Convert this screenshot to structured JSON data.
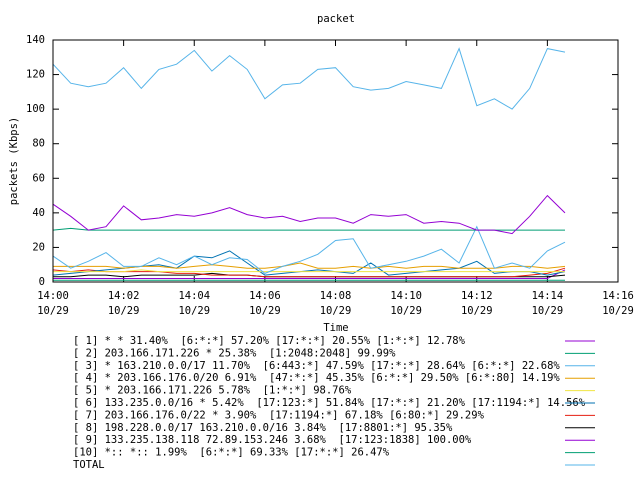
{
  "chart_data": {
    "type": "line",
    "title": "packet",
    "xlabel": "Time",
    "ylabel": "packets (Kbps)",
    "x": [
      "14:00:00",
      "14:00:30",
      "14:01:00",
      "14:01:30",
      "14:02:00",
      "14:02:30",
      "14:03:00",
      "14:03:30",
      "14:04:00",
      "14:04:30",
      "14:05:00",
      "14:05:30",
      "14:06:00",
      "14:06:30",
      "14:07:00",
      "14:07:30",
      "14:08:00",
      "14:08:30",
      "14:09:00",
      "14:09:30",
      "14:10:00",
      "14:10:30",
      "14:11:00",
      "14:11:30",
      "14:12:00",
      "14:12:30",
      "14:13:00",
      "14:13:30",
      "14:14:00",
      "14:14:30"
    ],
    "xlim": [
      "14:00",
      "14:16"
    ],
    "xticks": [
      "14:00",
      "14:02",
      "14:04",
      "14:06",
      "14:08",
      "14:10",
      "14:12",
      "14:14",
      "14:16"
    ],
    "date": "10/29",
    "ylim": [
      0,
      140
    ],
    "yticks": [
      0,
      20,
      40,
      60,
      80,
      100,
      120,
      140
    ],
    "series": [
      {
        "name": "[ 1] * * 31.40%  [6:*:*] 57.20% [17:*:*] 20.55% [1:*:*] 12.78%",
        "color": "#9400d3",
        "values": [
          45,
          38,
          30,
          32,
          44,
          36,
          37,
          39,
          38,
          40,
          43,
          39,
          37,
          38,
          35,
          37,
          37,
          34,
          39,
          38,
          39,
          34,
          35,
          34,
          30,
          30,
          28,
          38,
          50,
          40
        ]
      },
      {
        "name": "[ 2] 203.166.171.226 * 25.38%  [1:2048:2048] 99.99%",
        "color": "#009e73",
        "values": [
          30,
          31,
          30,
          30,
          30,
          30,
          30,
          30,
          30,
          30,
          30,
          30,
          30,
          30,
          30,
          30,
          30,
          30,
          30,
          30,
          30,
          30,
          30,
          30,
          30,
          30,
          30,
          30,
          30,
          30
        ]
      },
      {
        "name": "[ 3] * 163.210.0.0/17 11.70%  [6:443:*] 47.59% [17:*:*] 28.64% [6:*:*] 22.68%",
        "color": "#56b4e9",
        "values": [
          15,
          8,
          12,
          17,
          9,
          9,
          14,
          10,
          15,
          10,
          14,
          13,
          5,
          9,
          12,
          16,
          24,
          25,
          8,
          10,
          12,
          15,
          19,
          11,
          32,
          8,
          11,
          8,
          18,
          23
        ]
      },
      {
        "name": "[ 4] * 203.166.176.0/20 6.91%  [47:*:*] 45.35% [6:*:*] 29.50% [6:*:80] 14.19%",
        "color": "#e69f00",
        "values": [
          9,
          9,
          9,
          9,
          8,
          9,
          9,
          8,
          9,
          10,
          9,
          8,
          8,
          9,
          11,
          8,
          8,
          9,
          8,
          9,
          8,
          9,
          9,
          8,
          8,
          8,
          9,
          9,
          8,
          9
        ]
      },
      {
        "name": "[ 5] * 203.166.171.226 5.78%  [1:*:*] 98.76%",
        "color": "#f0e442",
        "values": [
          6,
          6,
          6,
          6,
          6,
          7,
          6,
          6,
          6,
          6,
          6,
          6,
          6,
          6,
          6,
          6,
          6,
          6,
          6,
          6,
          6,
          6,
          6,
          6,
          6,
          6,
          6,
          6,
          6,
          6
        ]
      },
      {
        "name": "[ 6] 133.235.0.0/16 * 5.42%  [17:123:*] 51.84% [17:*:*] 21.20% [17:1194:*] 14.56%",
        "color": "#0072b2",
        "values": [
          4,
          5,
          6,
          7,
          8,
          9,
          10,
          8,
          15,
          14,
          18,
          11,
          4,
          5,
          6,
          7,
          6,
          5,
          11,
          4,
          5,
          6,
          7,
          8,
          12,
          5,
          6,
          6,
          4,
          6
        ]
      },
      {
        "name": "[ 7] 203.166.176.0/22 * 3.90%  [17:1194:*] 67.18% [6:80:*] 29.29%",
        "color": "#e51e10",
        "values": [
          7,
          6,
          7,
          6,
          6,
          6,
          6,
          5,
          5,
          4,
          4,
          4,
          3,
          3,
          3,
          3,
          3,
          3,
          3,
          3,
          3,
          3,
          3,
          3,
          3,
          3,
          3,
          4,
          5,
          8
        ]
      },
      {
        "name": "[ 8] 198.228.0.0/17 163.210.0.0/16 3.84%  [17:8801:*] 95.35%",
        "color": "#000000",
        "values": [
          3,
          3,
          4,
          4,
          3,
          4,
          4,
          4,
          4,
          5,
          4,
          4,
          3,
          3,
          3,
          3,
          3,
          3,
          3,
          3,
          3,
          3,
          3,
          3,
          3,
          3,
          3,
          3,
          3,
          4
        ]
      },
      {
        "name": "[ 9] 133.235.138.118 72.89.153.246 3.68%  [17:123:1838] 100.00%",
        "color": "#9400d3",
        "values": [
          2,
          2,
          2,
          2,
          2,
          2,
          2,
          2,
          2,
          2,
          2,
          2,
          2,
          2,
          2,
          2,
          2,
          2,
          2,
          2,
          2,
          2,
          2,
          2,
          2,
          2,
          2,
          2,
          2,
          7
        ]
      },
      {
        "name": "[10] *:: *:: 1.99%  [6:*:*] 69.33% [17:*:*] 26.47%",
        "color": "#009e73",
        "values": [
          1,
          1,
          1,
          1,
          1,
          1,
          1,
          1,
          1,
          1,
          1,
          1,
          1,
          1,
          1,
          1,
          1,
          1,
          1,
          1,
          1,
          1,
          1,
          1,
          1,
          1,
          1,
          1,
          1,
          1
        ]
      },
      {
        "name": "TOTAL",
        "color": "#56b4e9",
        "values": [
          126,
          115,
          113,
          115,
          124,
          112,
          123,
          126,
          134,
          122,
          131,
          123,
          106,
          114,
          115,
          123,
          124,
          113,
          111,
          112,
          116,
          114,
          112,
          135,
          102,
          106,
          100,
          112,
          135,
          133
        ]
      }
    ]
  }
}
